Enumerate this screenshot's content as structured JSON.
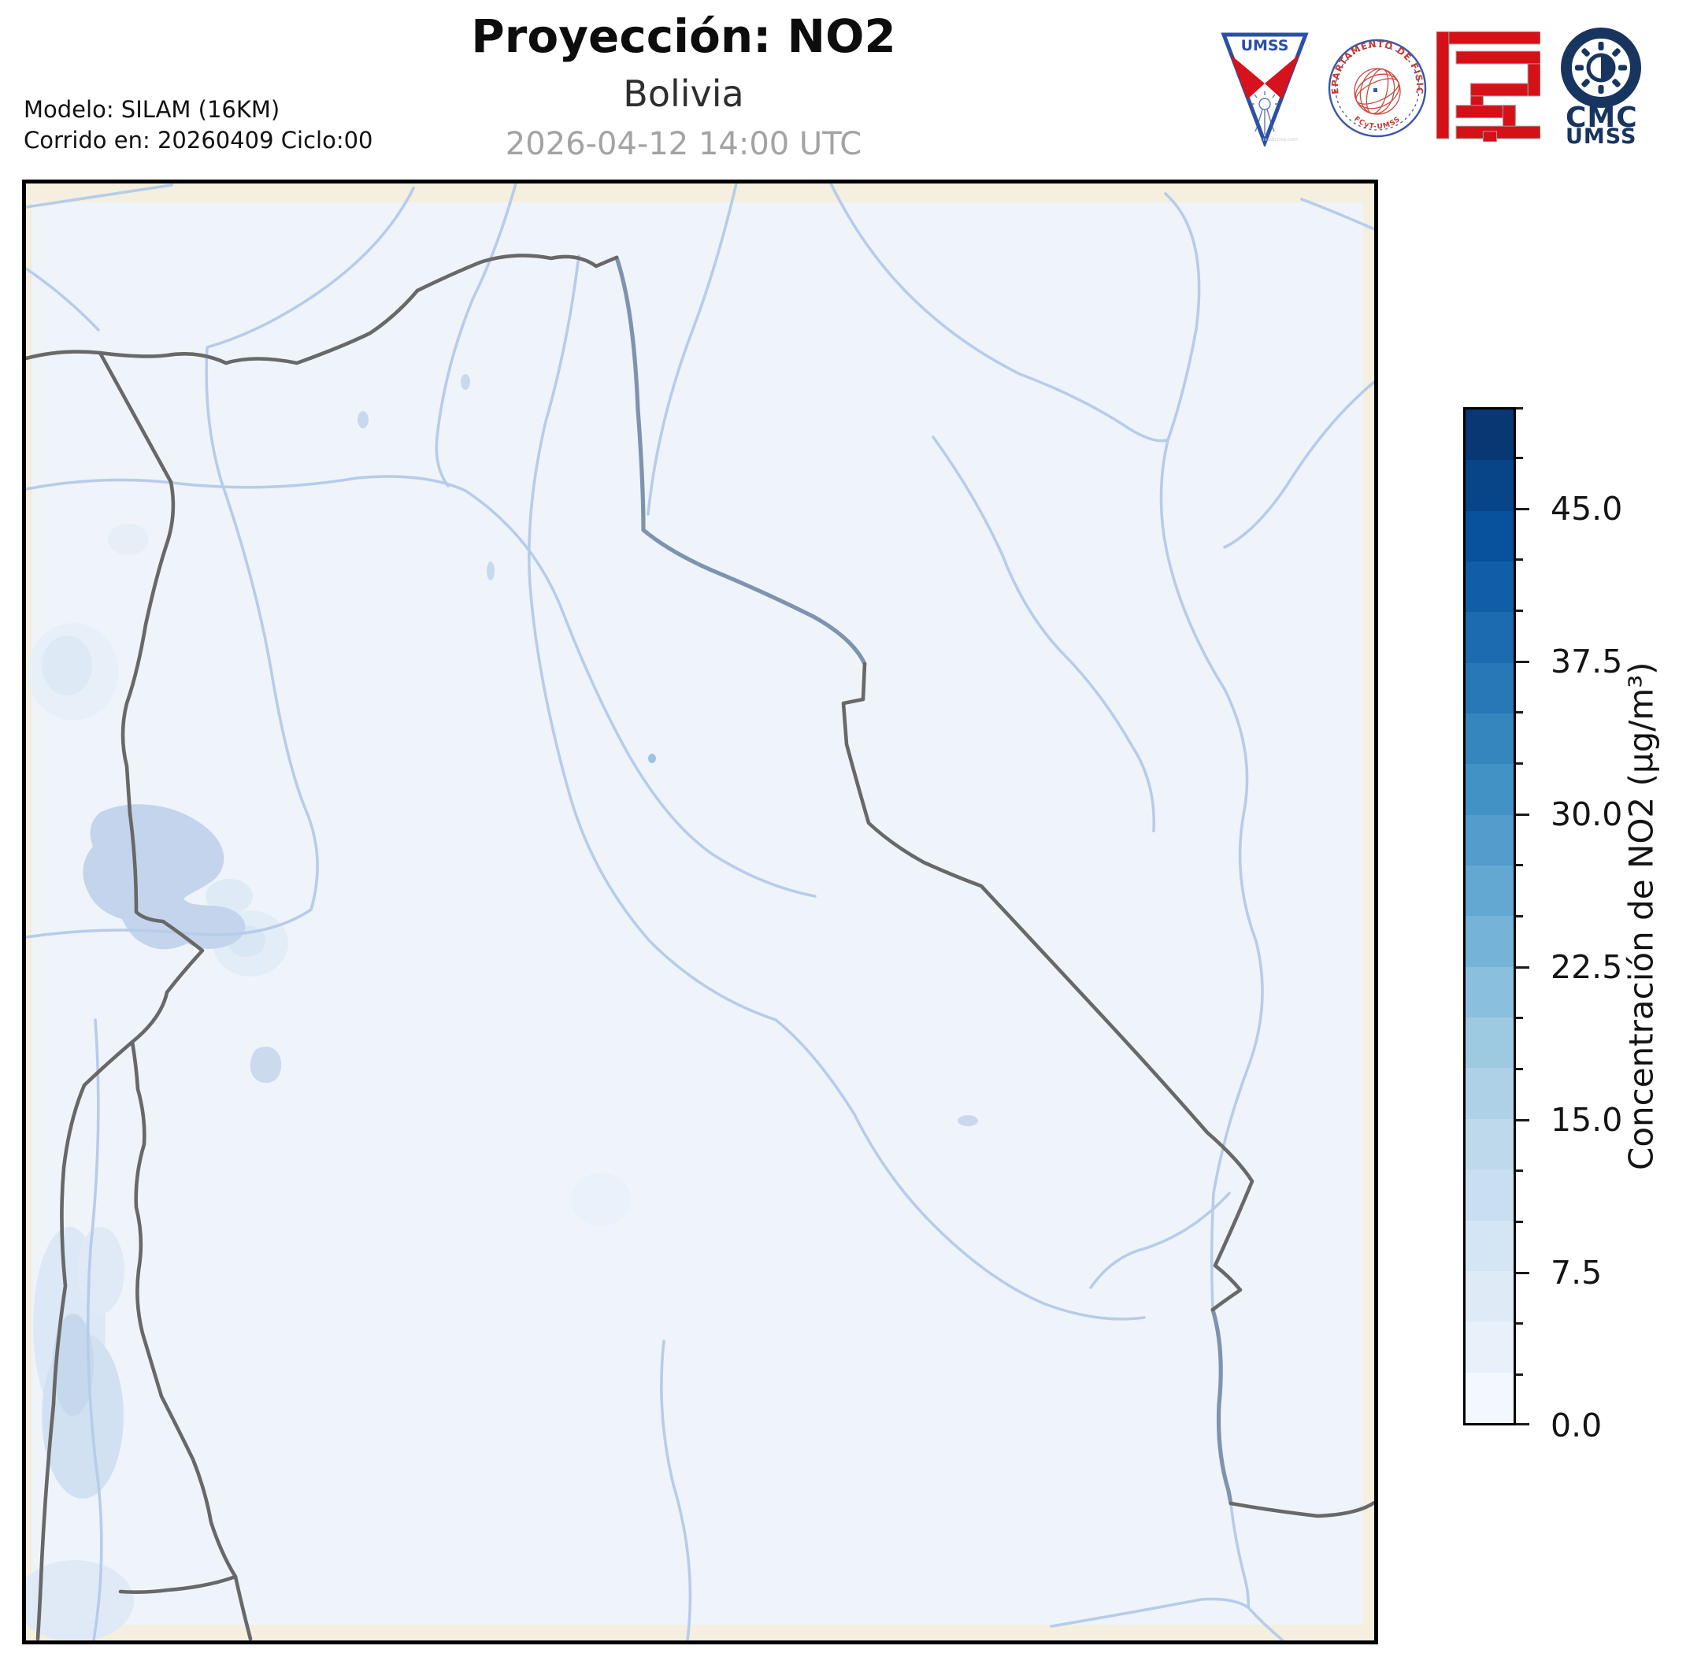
{
  "header": {
    "title": "Proyección: NO2",
    "subtitle": "Bolivia",
    "timestamp": "2026-04-12 14:00 UTC",
    "model_line1": "Modelo: SILAM (16KM)",
    "model_line2": "Corrido en: 20260409 Ciclo:00"
  },
  "logos": {
    "umss_pennant_text": "UMSS",
    "umss_pennant_watermark": "creadictivo.com",
    "fisica_seal_top_text": "DEPARTAMENTO DE FÍSICA",
    "fisica_seal_bottom_text": "FCyT-UMSS",
    "cmc_line1": "CMC",
    "cmc_line2": "UMSS"
  },
  "colorbar": {
    "label": "Concentración de NO2 (µg/m³)",
    "colormap": "Blues",
    "min": 0.0,
    "max": 50.0,
    "n_segments": 20,
    "minor_tick_step": 2.5,
    "major_ticks": [
      {
        "value": 45.0,
        "label": "45.0"
      },
      {
        "value": 37.5,
        "label": "37.5"
      },
      {
        "value": 30.0,
        "label": "30.0"
      },
      {
        "value": 22.5,
        "label": "22.5"
      },
      {
        "value": 15.0,
        "label": "15.0"
      },
      {
        "value": 7.5,
        "label": "7.5"
      },
      {
        "value": 0.0,
        "label": "0.0"
      }
    ],
    "segment_colors_top_to_bottom": [
      "#083774",
      "#084488",
      "#08519c",
      "#125ea6",
      "#1c6bb0",
      "#2878b8",
      "#3585bf",
      "#4292c6",
      "#529dcc",
      "#63a8d3",
      "#75b4d8",
      "#8abfdd",
      "#9ecae1",
      "#aed1e7",
      "#bed8ec",
      "#c9def1",
      "#d4e5f4",
      "#deebf7",
      "#e8f1fa",
      "#f2f8fd"
    ]
  },
  "map": {
    "region": "Bolivia",
    "data_background_color": "#eff4fb",
    "outside_domain_color": "#f4efde",
    "admin_border_color": "#686868",
    "river_color": "#b7cce9",
    "river_border_color": "#7e93ad",
    "lake_color": "#c4d4ec"
  },
  "chart_data": {
    "type": "heatmap",
    "title": "Proyección: NO2",
    "subtitle": "Bolivia",
    "valid_time": "2026-04-12 14:00 UTC",
    "model": "SILAM (16KM)",
    "run_date": "20260409",
    "run_cycle": "00",
    "variable": "Concentración de NO2 (µg/m³)",
    "scale_range": [
      0,
      50
    ],
    "scale_major_ticks": [
      0.0,
      7.5,
      15.0,
      22.5,
      30.0,
      37.5,
      45.0
    ],
    "scale_minor_step": 2.5,
    "field_summary": "NO2 values over the whole domain are very low (≈0–5 µg/m³, palest shades); slightly elevated patches near Lake Titicaca / La Paz and along the Chilean coast in the southwest"
  }
}
